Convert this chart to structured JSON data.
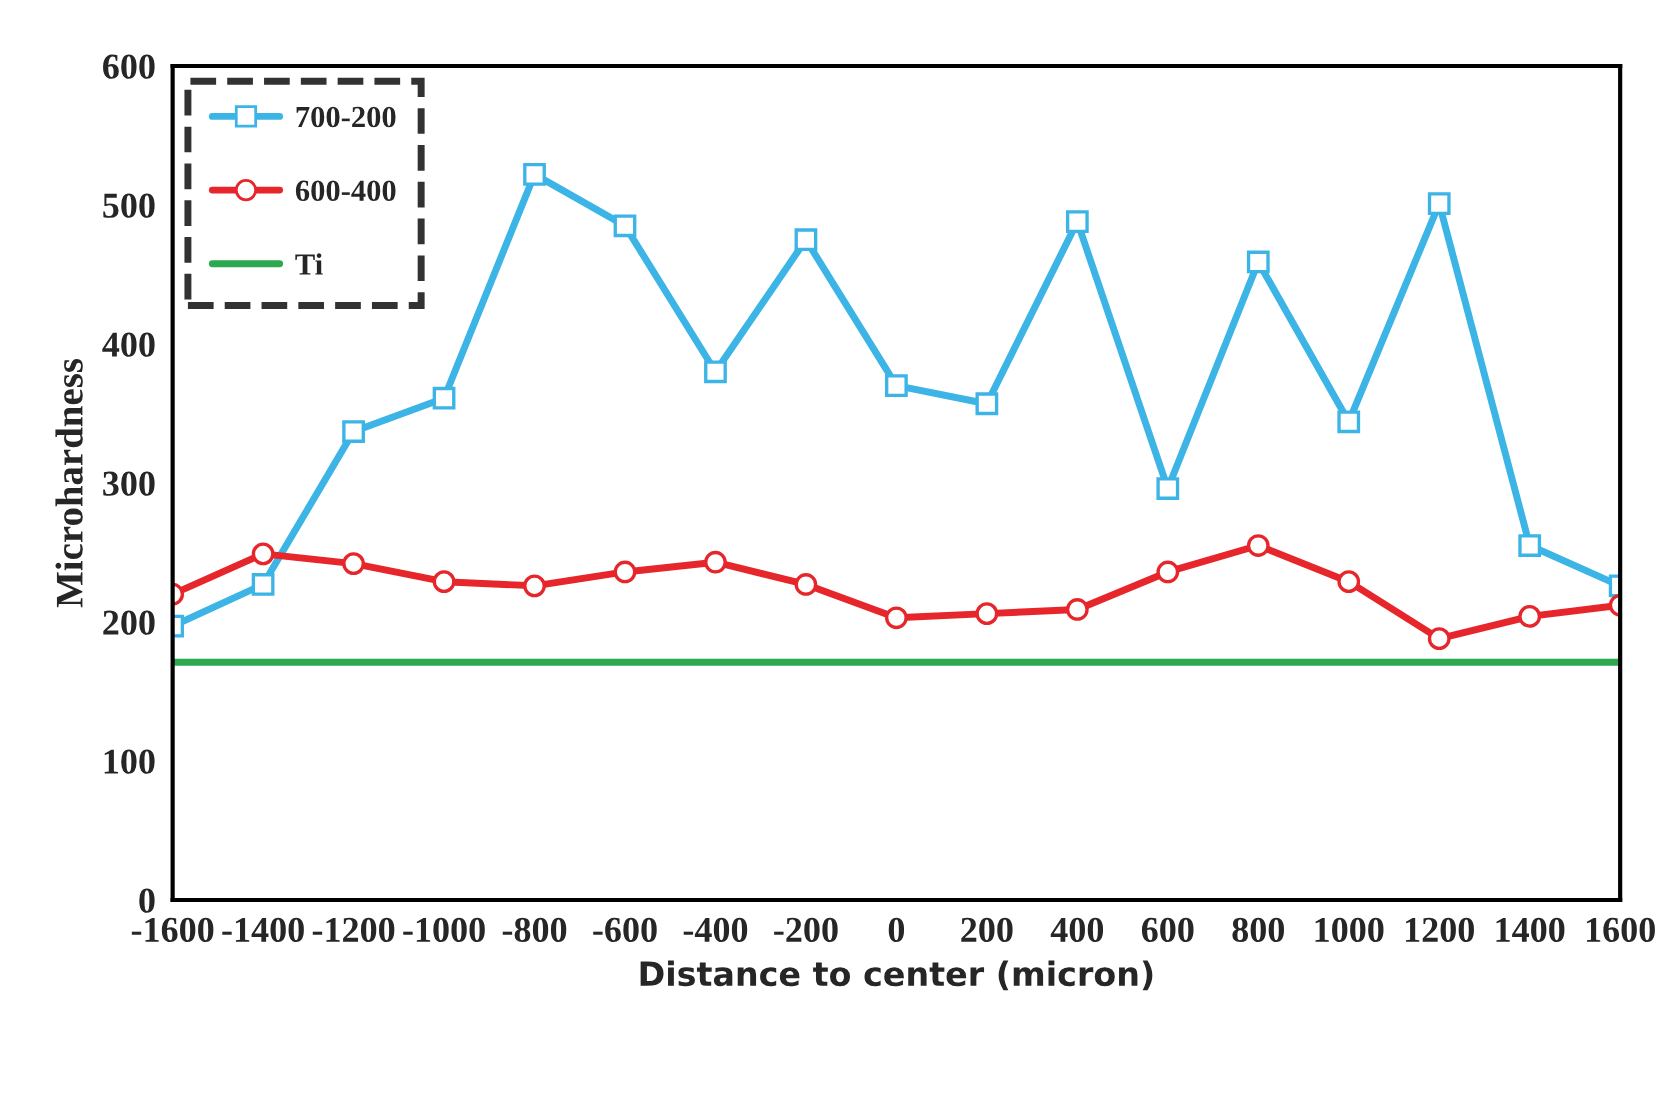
{
  "chart_data": {
    "type": "line",
    "xlabel": "Distance to center (micron)",
    "ylabel": "Microhardness",
    "x": [
      -1600,
      -1400,
      -1200,
      -1000,
      -800,
      -600,
      -400,
      -200,
      0,
      200,
      400,
      600,
      800,
      1000,
      1200,
      1400,
      1600
    ],
    "series": [
      {
        "name": "700-200",
        "color": "#3cb4e6",
        "marker": "square",
        "values": [
          197,
          227,
          337,
          361,
          522,
          485,
          380,
          475,
          370,
          357,
          488,
          296,
          459,
          344,
          501,
          255,
          226
        ]
      },
      {
        "name": "600-400",
        "color": "#e6262b",
        "marker": "circle",
        "values": [
          220,
          249,
          242,
          229,
          226,
          236,
          243,
          227,
          203,
          206,
          209,
          236,
          255,
          229,
          188,
          204,
          212
        ]
      },
      {
        "name": "Ti",
        "color": "#2ca850",
        "marker": "none",
        "values": [
          171,
          171,
          171,
          171,
          171,
          171,
          171,
          171,
          171,
          171,
          171,
          171,
          171,
          171,
          171,
          171,
          171
        ]
      }
    ],
    "xlim": [
      -1600,
      1600
    ],
    "xticks": [
      -1600,
      -1400,
      -1200,
      -1000,
      -800,
      -600,
      -400,
      -200,
      0,
      200,
      400,
      600,
      800,
      1000,
      1200,
      1400,
      1600
    ],
    "ylim": [
      0,
      600
    ],
    "yticks": [
      0,
      100,
      200,
      300,
      400,
      500,
      600
    ],
    "grid": false,
    "legend": "top left",
    "line_style": "solid"
  }
}
